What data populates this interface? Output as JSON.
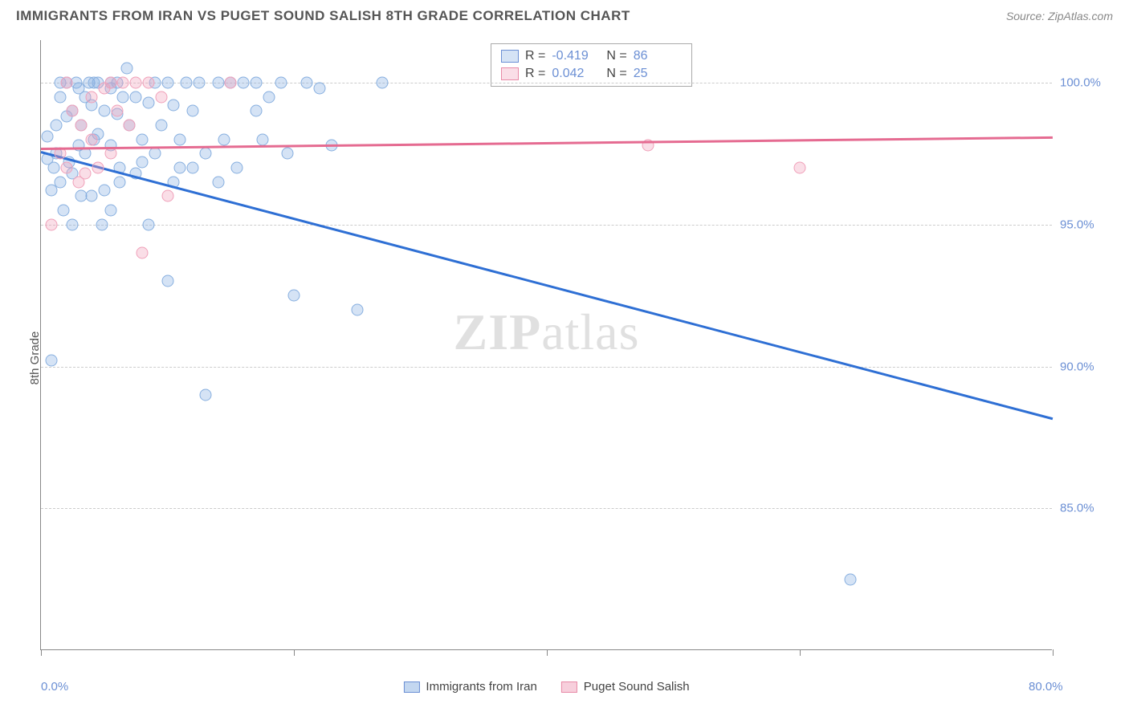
{
  "title": "IMMIGRANTS FROM IRAN VS PUGET SOUND SALISH 8TH GRADE CORRELATION CHART",
  "source": "Source: ZipAtlas.com",
  "ylabel": "8th Grade",
  "watermark": "ZIPatlas",
  "chart": {
    "type": "scatter",
    "xlim": [
      0,
      80
    ],
    "ylim": [
      80,
      101.5
    ],
    "xticks": [
      0,
      20,
      40,
      60,
      80
    ],
    "xtick_labels": [
      "0.0%",
      "",
      "",
      "",
      "80.0%"
    ],
    "yticks": [
      85,
      90,
      95,
      100
    ],
    "ytick_labels": [
      "85.0%",
      "90.0%",
      "95.0%",
      "100.0%"
    ],
    "grid_color": "#cccccc",
    "background": "#ffffff",
    "series": [
      {
        "name": "Immigrants from Iran",
        "color_fill": "rgba(135,175,225,0.35)",
        "color_stroke": "#87afdf",
        "stroke": "#6b8fd4",
        "marker_size": 15,
        "R": "-0.419",
        "N": "86",
        "trend": {
          "x1": 0,
          "y1": 97.6,
          "x2": 80,
          "y2": 88.2,
          "color": "#2e6fd4",
          "width": 3
        },
        "points": [
          [
            0.5,
            97.3
          ],
          [
            0.5,
            98.1
          ],
          [
            0.8,
            96.2
          ],
          [
            0.8,
            90.2
          ],
          [
            1.0,
            97.0
          ],
          [
            1.2,
            98.5
          ],
          [
            1.2,
            97.5
          ],
          [
            1.5,
            100.0
          ],
          [
            1.5,
            99.5
          ],
          [
            1.5,
            96.5
          ],
          [
            1.8,
            95.5
          ],
          [
            2.0,
            98.8
          ],
          [
            2.0,
            100.0
          ],
          [
            2.2,
            97.2
          ],
          [
            2.5,
            99.0
          ],
          [
            2.5,
            95.0
          ],
          [
            2.5,
            96.8
          ],
          [
            2.8,
            100.0
          ],
          [
            3.0,
            97.8
          ],
          [
            3.0,
            99.8
          ],
          [
            3.2,
            98.5
          ],
          [
            3.2,
            96.0
          ],
          [
            3.5,
            99.5
          ],
          [
            3.5,
            97.5
          ],
          [
            3.8,
            100.0
          ],
          [
            4.0,
            96.0
          ],
          [
            4.0,
            99.2
          ],
          [
            4.2,
            100.0
          ],
          [
            4.2,
            98.0
          ],
          [
            4.5,
            98.2
          ],
          [
            4.5,
            100.0
          ],
          [
            4.8,
            95.0
          ],
          [
            5.0,
            99.0
          ],
          [
            5.0,
            96.2
          ],
          [
            5.5,
            97.8
          ],
          [
            5.5,
            99.8
          ],
          [
            5.5,
            100.0
          ],
          [
            5.5,
            95.5
          ],
          [
            6.0,
            98.9
          ],
          [
            6.0,
            100.0
          ],
          [
            6.2,
            97.0
          ],
          [
            6.2,
            96.5
          ],
          [
            6.5,
            99.5
          ],
          [
            6.8,
            100.5
          ],
          [
            7.0,
            98.5
          ],
          [
            7.5,
            99.5
          ],
          [
            7.5,
            96.8
          ],
          [
            8.0,
            97.2
          ],
          [
            8.0,
            98.0
          ],
          [
            8.5,
            99.3
          ],
          [
            8.5,
            95.0
          ],
          [
            9.0,
            100.0
          ],
          [
            9.0,
            97.5
          ],
          [
            9.5,
            98.5
          ],
          [
            10.0,
            100.0
          ],
          [
            10.0,
            93.0
          ],
          [
            10.5,
            96.5
          ],
          [
            10.5,
            99.2
          ],
          [
            11.0,
            97.0
          ],
          [
            11.0,
            98.0
          ],
          [
            11.5,
            100.0
          ],
          [
            12.0,
            97.0
          ],
          [
            12.0,
            99.0
          ],
          [
            12.5,
            100.0
          ],
          [
            13.0,
            97.5
          ],
          [
            13.0,
            89.0
          ],
          [
            14.0,
            100.0
          ],
          [
            14.0,
            96.5
          ],
          [
            14.5,
            98.0
          ],
          [
            15.0,
            100.0
          ],
          [
            15.5,
            97.0
          ],
          [
            16.0,
            100.0
          ],
          [
            17.0,
            99.0
          ],
          [
            17.0,
            100.0
          ],
          [
            17.5,
            98.0
          ],
          [
            18.0,
            99.5
          ],
          [
            19.0,
            100.0
          ],
          [
            19.5,
            97.5
          ],
          [
            20.0,
            92.5
          ],
          [
            21.0,
            100.0
          ],
          [
            22.0,
            99.8
          ],
          [
            23.0,
            97.8
          ],
          [
            25.0,
            92.0
          ],
          [
            27.0,
            100.0
          ],
          [
            64.0,
            82.5
          ]
        ]
      },
      {
        "name": "Puget Sound Salish",
        "color_fill": "rgba(240,160,185,0.35)",
        "color_stroke": "#f0a0b9",
        "stroke": "#e88aa7",
        "marker_size": 15,
        "R": "0.042",
        "N": "25",
        "trend": {
          "x1": 0,
          "y1": 97.7,
          "x2": 80,
          "y2": 98.1,
          "color": "#e56b91",
          "width": 2.5
        },
        "points": [
          [
            0.8,
            95.0
          ],
          [
            1.5,
            97.5
          ],
          [
            2.0,
            97.0
          ],
          [
            2.0,
            100.0
          ],
          [
            2.5,
            99.0
          ],
          [
            3.0,
            96.5
          ],
          [
            3.2,
            98.5
          ],
          [
            3.5,
            96.8
          ],
          [
            4.0,
            98.0
          ],
          [
            4.0,
            99.5
          ],
          [
            4.5,
            97.0
          ],
          [
            5.0,
            99.8
          ],
          [
            5.5,
            97.5
          ],
          [
            5.5,
            100.0
          ],
          [
            6.0,
            99.0
          ],
          [
            6.5,
            100.0
          ],
          [
            7.0,
            98.5
          ],
          [
            7.5,
            100.0
          ],
          [
            8.0,
            94.0
          ],
          [
            8.5,
            100.0
          ],
          [
            9.5,
            99.5
          ],
          [
            10.0,
            96.0
          ],
          [
            15.0,
            100.0
          ],
          [
            48.0,
            97.8
          ],
          [
            60.0,
            97.0
          ]
        ]
      }
    ],
    "legend_bottom": {
      "items": [
        {
          "label": "Immigrants from Iran",
          "fill": "rgba(135,175,225,0.5)",
          "stroke": "#6b8fd4"
        },
        {
          "label": "Puget Sound Salish",
          "fill": "rgba(240,160,185,0.5)",
          "stroke": "#e88aa7"
        }
      ]
    }
  }
}
